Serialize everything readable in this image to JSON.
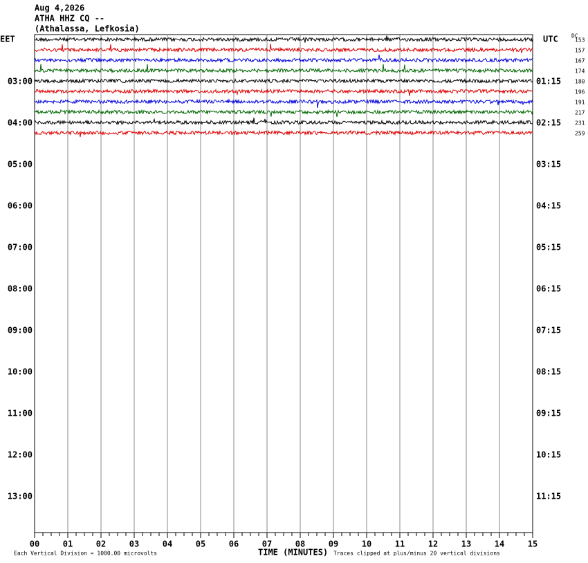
{
  "header": {
    "date": "Aug 4,2026",
    "station": "ATHA HHZ CQ --",
    "location": "(Athalassa, Lefkosia)"
  },
  "left_axis": {
    "label": "EET",
    "ticks": [
      "03:00",
      "04:00",
      "05:00",
      "06:00",
      "07:00",
      "08:00",
      "09:00",
      "10:00",
      "11:00",
      "12:00",
      "13:00"
    ]
  },
  "right_axis": {
    "label": "UTC",
    "ticks": [
      "01:15",
      "02:15",
      "03:15",
      "04:15",
      "05:15",
      "06:15",
      "07:15",
      "08:15",
      "09:15",
      "10:15",
      "11:15"
    ]
  },
  "dc": {
    "label": "DC",
    "values": [
      153,
      157,
      167,
      174,
      180,
      196,
      191,
      217,
      231,
      259
    ]
  },
  "traces": {
    "colors": [
      "#000000",
      "#dd0000",
      "#0000dd",
      "#006600"
    ]
  },
  "x_axis": {
    "title": "TIME (MINUTES)",
    "ticks": [
      "00",
      "01",
      "02",
      "03",
      "04",
      "05",
      "06",
      "07",
      "08",
      "09",
      "10",
      "11",
      "12",
      "13",
      "14",
      "15"
    ]
  },
  "footer": {
    "left": "Each Vertical Division = 1000.00 microvolts",
    "right": "Traces clipped at plus/minus 20 vertical divisions"
  }
}
